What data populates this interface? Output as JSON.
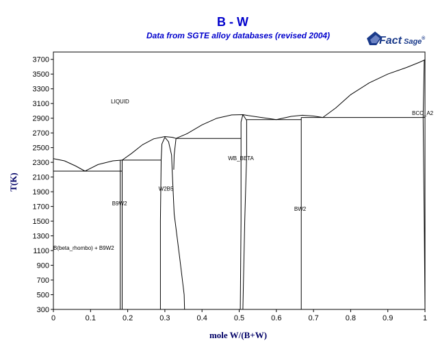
{
  "title": "B - W",
  "subtitle": "Data from SGTE alloy databases (revised 2004)",
  "logo": {
    "text_main": "Fact",
    "text_sub": "Sage",
    "mark": "®"
  },
  "colors": {
    "title": "#0000cc",
    "logo": "#1a3a8a",
    "lines": "#000000"
  },
  "chart_data": {
    "type": "phase-diagram",
    "title": "B - W",
    "subtitle": "Data from SGTE alloy databases (revised 2004)",
    "xlabel": "mole W/(B+W)",
    "ylabel": "T(K)",
    "xlim": [
      0,
      1
    ],
    "ylim": [
      300,
      3800
    ],
    "xticks": [
      0,
      0.1,
      0.2,
      0.3,
      0.4,
      0.5,
      0.6,
      0.7,
      0.8,
      0.9,
      1
    ],
    "yticks": [
      300,
      500,
      700,
      900,
      1100,
      1300,
      1500,
      1700,
      1900,
      2100,
      2300,
      2500,
      2700,
      2900,
      3100,
      3300,
      3500,
      3700
    ],
    "grid": false,
    "region_labels": [
      {
        "text": "LIQUID",
        "x": 0.155,
        "y": 3100
      },
      {
        "text": "BCC_A2",
        "x": 0.965,
        "y": 2945
      },
      {
        "text": "WB_BETA",
        "x": 0.47,
        "y": 2330
      },
      {
        "text": "W2B5",
        "x": 0.283,
        "y": 1915
      },
      {
        "text": "B9W2",
        "x": 0.158,
        "y": 1715
      },
      {
        "text": "BW2",
        "x": 0.648,
        "y": 1640
      },
      {
        "text": "B(beta_rhombo) + B9W2",
        "x": 0.0,
        "y": 1110
      }
    ],
    "lines": [
      {
        "name": "liquidus-boron",
        "points": [
          [
            0,
            2350
          ],
          [
            0.03,
            2320
          ],
          [
            0.06,
            2250
          ],
          [
            0.085,
            2180
          ]
        ]
      },
      {
        "name": "liquidus-b9w2",
        "points": [
          [
            0.085,
            2180
          ],
          [
            0.12,
            2270
          ],
          [
            0.16,
            2320
          ],
          [
            0.185,
            2330
          ]
        ]
      },
      {
        "name": "liquidus-w2b5",
        "points": [
          [
            0.185,
            2330
          ],
          [
            0.21,
            2420
          ],
          [
            0.24,
            2540
          ],
          [
            0.27,
            2620
          ],
          [
            0.3,
            2650
          ],
          [
            0.32,
            2640
          ],
          [
            0.33,
            2625
          ]
        ]
      },
      {
        "name": "liquidus-wb",
        "points": [
          [
            0.33,
            2625
          ],
          [
            0.36,
            2690
          ],
          [
            0.4,
            2810
          ],
          [
            0.44,
            2900
          ],
          [
            0.48,
            2945
          ],
          [
            0.51,
            2948
          ],
          [
            0.525,
            2935
          ],
          [
            0.56,
            2910
          ],
          [
            0.6,
            2880
          ]
        ]
      },
      {
        "name": "liquidus-bw2",
        "points": [
          [
            0.6,
            2880
          ],
          [
            0.64,
            2925
          ],
          [
            0.67,
            2940
          ],
          [
            0.7,
            2930
          ],
          [
            0.725,
            2910
          ]
        ]
      },
      {
        "name": "liquidus-w",
        "points": [
          [
            0.725,
            2910
          ],
          [
            0.76,
            3040
          ],
          [
            0.8,
            3220
          ],
          [
            0.85,
            3380
          ],
          [
            0.9,
            3500
          ],
          [
            0.95,
            3590
          ],
          [
            0.985,
            3660
          ],
          [
            1.0,
            3695
          ]
        ]
      },
      {
        "name": "eutectic-0.085",
        "points": [
          [
            0,
            2180
          ],
          [
            0.185,
            2180
          ]
        ]
      },
      {
        "name": "peritectic-b9w2",
        "points": [
          [
            0.185,
            2330
          ],
          [
            0.29,
            2330
          ]
        ]
      },
      {
        "name": "eutectic-0.33",
        "points": [
          [
            0.33,
            2625
          ],
          [
            0.505,
            2625
          ]
        ]
      },
      {
        "name": "eutectic-0.6",
        "points": [
          [
            0.52,
            2880
          ],
          [
            0.667,
            2880
          ]
        ]
      },
      {
        "name": "peritectic-bw2",
        "points": [
          [
            0.667,
            2910
          ],
          [
            1.0,
            2910
          ]
        ]
      },
      {
        "name": "b9w2-line",
        "points": [
          [
            0.18,
            2330
          ],
          [
            0.18,
            300
          ]
        ]
      },
      {
        "name": "b9w2-line-2",
        "points": [
          [
            0.185,
            2330
          ],
          [
            0.185,
            300
          ]
        ]
      },
      {
        "name": "w2b5-left",
        "points": [
          [
            0.29,
            2330
          ],
          [
            0.292,
            2550
          ],
          [
            0.3,
            2640
          ]
        ]
      },
      {
        "name": "w2b5-left-low",
        "points": [
          [
            0.29,
            2330
          ],
          [
            0.288,
            1500
          ],
          [
            0.288,
            300
          ]
        ]
      },
      {
        "name": "w2b5-right",
        "points": [
          [
            0.3,
            2640
          ],
          [
            0.31,
            2580
          ],
          [
            0.318,
            2400
          ],
          [
            0.32,
            2150
          ],
          [
            0.325,
            1600
          ],
          [
            0.34,
            1000
          ],
          [
            0.352,
            500
          ],
          [
            0.353,
            300
          ]
        ]
      },
      {
        "name": "w2b5-right-2",
        "points": [
          [
            0.33,
            2625
          ],
          [
            0.325,
            2400
          ],
          [
            0.324,
            2200
          ]
        ]
      },
      {
        "name": "wb-left",
        "points": [
          [
            0.505,
            2625
          ],
          [
            0.505,
            1500
          ],
          [
            0.503,
            300
          ]
        ]
      },
      {
        "name": "wb-left-top",
        "points": [
          [
            0.505,
            2625
          ],
          [
            0.505,
            2850
          ],
          [
            0.51,
            2948
          ]
        ]
      },
      {
        "name": "wb-right",
        "points": [
          [
            0.51,
            2948
          ],
          [
            0.52,
            2870
          ],
          [
            0.52,
            2400
          ],
          [
            0.515,
            1500
          ],
          [
            0.51,
            300
          ]
        ]
      },
      {
        "name": "bw2-line",
        "points": [
          [
            0.667,
            2910
          ],
          [
            0.667,
            300
          ]
        ]
      },
      {
        "name": "w-solvus",
        "points": [
          [
            0.998,
            3695
          ],
          [
            0.995,
            2910
          ],
          [
            0.998,
            1500
          ],
          [
            1.0,
            300
          ]
        ]
      }
    ]
  }
}
